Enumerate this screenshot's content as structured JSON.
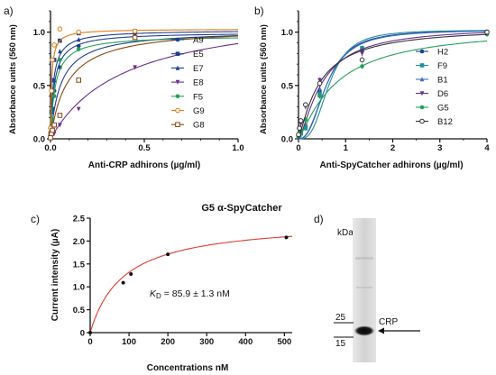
{
  "panels": {
    "a": {
      "label": "a)"
    },
    "b": {
      "label": "b)"
    },
    "c": {
      "label": "c)"
    },
    "d": {
      "label": "d)"
    }
  },
  "chart_data": [
    {
      "id": "a",
      "type": "line",
      "xlabel": "Anti-CRP adhirons (µg/ml)",
      "ylabel": "Absorbance units (560 nm)",
      "xlim": [
        0,
        1.0
      ],
      "ylim": [
        0,
        1.2
      ],
      "xticks": [
        "0.0",
        "0.5",
        "1.0"
      ],
      "yticks": [
        "0.0",
        "0.5",
        "1.0"
      ],
      "grid": false,
      "legend_position": "right",
      "series": [
        {
          "name": "A9",
          "color": "#1f3f8f",
          "marker": "circle-filled",
          "x": [
            0.0,
            0.005,
            0.01,
            0.02,
            0.05,
            0.15,
            0.45
          ],
          "y": [
            0.04,
            0.12,
            0.28,
            0.45,
            0.67,
            0.87,
            0.99
          ],
          "fit": [
            1.02,
            0.055
          ]
        },
        {
          "name": "E5",
          "color": "#1f3f8f",
          "marker": "square-filled",
          "x": [
            0.0,
            0.005,
            0.01,
            0.02,
            0.05,
            0.15,
            0.45
          ],
          "y": [
            0.05,
            0.25,
            0.55,
            0.74,
            0.92,
            0.99,
            1.01
          ],
          "fit": [
            1.02,
            0.015
          ]
        },
        {
          "name": "E7",
          "color": "#1f3f8f",
          "marker": "triangle-up",
          "x": [
            0.0,
            0.005,
            0.01,
            0.02,
            0.05,
            0.15,
            0.45
          ],
          "y": [
            0.03,
            0.15,
            0.3,
            0.55,
            0.82,
            0.93,
            0.98
          ],
          "fit": [
            1.0,
            0.02
          ]
        },
        {
          "name": "E8",
          "color": "#6a2e8a",
          "marker": "triangle-down",
          "x": [
            0.0,
            0.005,
            0.01,
            0.02,
            0.05,
            0.15,
            0.45
          ],
          "y": [
            0.0,
            0.02,
            0.03,
            0.05,
            0.13,
            0.28,
            0.67
          ],
          "fit": [
            1.25,
            0.4
          ]
        },
        {
          "name": "F5",
          "color": "#22a05a",
          "marker": "circle-filled",
          "x": [
            0.0,
            0.005,
            0.01,
            0.02,
            0.05,
            0.15,
            0.45
          ],
          "y": [
            0.02,
            0.08,
            0.18,
            0.4,
            0.74,
            0.84,
            0.95
          ],
          "fit": [
            0.97,
            0.025
          ]
        },
        {
          "name": "G9",
          "color": "#e07a10",
          "marker": "circle-open",
          "x": [
            0.0,
            0.005,
            0.01,
            0.02,
            0.05,
            0.15,
            0.45
          ],
          "y": [
            0.1,
            0.45,
            0.74,
            0.88,
            1.03,
            1.0,
            1.01
          ],
          "fit": [
            1.03,
            0.006
          ]
        },
        {
          "name": "G8",
          "color": "#8b4513",
          "marker": "square-open",
          "x": [
            0.0,
            0.005,
            0.01,
            0.02,
            0.05,
            0.15,
            0.45
          ],
          "y": [
            0.01,
            0.05,
            0.08,
            0.13,
            0.22,
            0.55,
            0.95
          ],
          "fit": [
            1.05,
            0.09
          ]
        }
      ]
    },
    {
      "id": "b",
      "type": "line",
      "xlabel": "Anti-SpyCatcher adhirons (µg/ml)",
      "ylabel": "Absorbance units (560 nm)",
      "xlim": [
        0,
        4
      ],
      "ylim": [
        0,
        1.2
      ],
      "xticks": [
        "0",
        "1",
        "2",
        "3",
        "4"
      ],
      "yticks": [
        "0.0",
        "0.5",
        "1.0"
      ],
      "grid": false,
      "legend_position": "right",
      "series": [
        {
          "name": "H2",
          "color": "#1f3f8f",
          "marker": "circle-filled",
          "x": [
            0.0,
            0.02,
            0.05,
            0.15,
            0.45,
            1.35,
            4.0
          ],
          "y": [
            0.02,
            0.04,
            0.06,
            0.12,
            0.45,
            0.83,
            1.0
          ],
          "fit": [
            1.02,
            0.6,
            2.5
          ]
        },
        {
          "name": "F9",
          "color": "#1f8f9a",
          "marker": "square-filled",
          "x": [
            0.0,
            0.02,
            0.05,
            0.15,
            0.45,
            1.35,
            4.0
          ],
          "y": [
            0.02,
            0.03,
            0.05,
            0.1,
            0.42,
            0.85,
            1.0
          ],
          "fit": [
            1.02,
            0.65,
            3.0
          ]
        },
        {
          "name": "B1",
          "color": "#3f6fbf",
          "marker": "triangle-up",
          "x": [
            0.0,
            0.02,
            0.05,
            0.15,
            0.45,
            1.35,
            4.0
          ],
          "y": [
            0.02,
            0.04,
            0.07,
            0.14,
            0.47,
            0.83,
            1.0
          ],
          "fit": [
            1.02,
            0.6,
            2.4
          ]
        },
        {
          "name": "D6",
          "color": "#6a2e8a",
          "marker": "triangle-down",
          "x": [
            0.0,
            0.02,
            0.05,
            0.15,
            0.45,
            1.35,
            4.0
          ],
          "y": [
            0.03,
            0.08,
            0.14,
            0.3,
            0.55,
            0.8,
            1.0
          ],
          "fit": [
            1.05,
            0.5,
            1.4
          ]
        },
        {
          "name": "G5",
          "color": "#22a05a",
          "marker": "circle-filled",
          "x": [
            0.0,
            0.02,
            0.05,
            0.15,
            0.45,
            1.35,
            4.0
          ],
          "y": [
            0.02,
            0.05,
            0.08,
            0.18,
            0.4,
            0.68,
            0.98
          ],
          "fit": [
            1.05,
            0.8,
            1.2
          ]
        },
        {
          "name": "B12",
          "color": "#333333",
          "marker": "circle-open",
          "x": [
            0.0,
            0.02,
            0.05,
            0.15,
            0.45,
            1.35,
            4.0
          ],
          "y": [
            0.04,
            0.1,
            0.17,
            0.32,
            0.52,
            0.74,
            1.0
          ],
          "fit": [
            1.05,
            0.45,
            1.2
          ]
        }
      ]
    },
    {
      "id": "c",
      "type": "line",
      "title": "G5 α-SpyCatcher",
      "xlabel": "Concentrations nM",
      "ylabel": "Current intensity (µA)",
      "xlim": [
        0,
        520
      ],
      "ylim": [
        0,
        2.5
      ],
      "xticks": [
        "0",
        "100",
        "200",
        "300",
        "400",
        "500"
      ],
      "yticks": [
        "0",
        "0.5",
        "1.0",
        "1.5",
        "2.0",
        "2.5"
      ],
      "grid": false,
      "annotation_prefix": "K",
      "annotation_sub": "D",
      "annotation_text": " = 85.9 ± 1.3 nM",
      "series": [
        {
          "name": "",
          "color": "#111111",
          "fit_color": "#e03a2f",
          "x": [
            0,
            85,
            105,
            200,
            505
          ],
          "y": [
            0.0,
            1.09,
            1.28,
            1.71,
            2.08
          ],
          "fit": [
            2.45,
            85.9
          ]
        }
      ]
    }
  ],
  "blot": {
    "unit": "kDa",
    "markers": [
      "25",
      "15"
    ],
    "band_label": "CRP"
  }
}
